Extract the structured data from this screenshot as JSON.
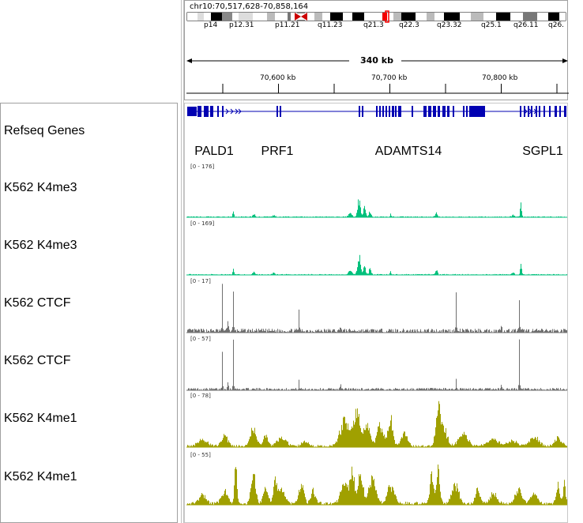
{
  "header": {
    "locus": "chr10:70,517,628-70,858,164",
    "span_label": "340 kb",
    "bands": [
      "p14",
      "p12.31",
      "p11.21",
      "q11.23",
      "q21.3",
      "q22.3",
      "q23.32",
      "q25.1",
      "q26.11",
      "q26."
    ],
    "ruler_ticks": [
      "70,600 kb",
      "70,700 kb",
      "70,800 kb"
    ]
  },
  "tracks": [
    {
      "id": "refseq",
      "name": "Refseq Genes",
      "genes": [
        "PALD1",
        "PRF1",
        "ADAMTS14",
        "SGPL1"
      ],
      "color": "#0000b2"
    },
    {
      "id": "k4me3_a",
      "name": "K562 K4me3",
      "range": "[0 - 176]",
      "color": "#00c07c"
    },
    {
      "id": "k4me3_b",
      "name": "K562 K4me3",
      "range": "[0 - 169]",
      "color": "#00c07c"
    },
    {
      "id": "ctcf_a",
      "name": "K562 CTCF",
      "range": "[0 - 17]",
      "color": "#707070"
    },
    {
      "id": "ctcf_b",
      "name": "K562 CTCF",
      "range": "[0 - 57]",
      "color": "#707070"
    },
    {
      "id": "k4me1_a",
      "name": "K562 K4me1",
      "range": "[0 - 78]",
      "color": "#a0a000"
    },
    {
      "id": "k4me1_b",
      "name": "K562 K4me1",
      "range": "[0 - 55]",
      "color": "#a0a000"
    }
  ]
}
